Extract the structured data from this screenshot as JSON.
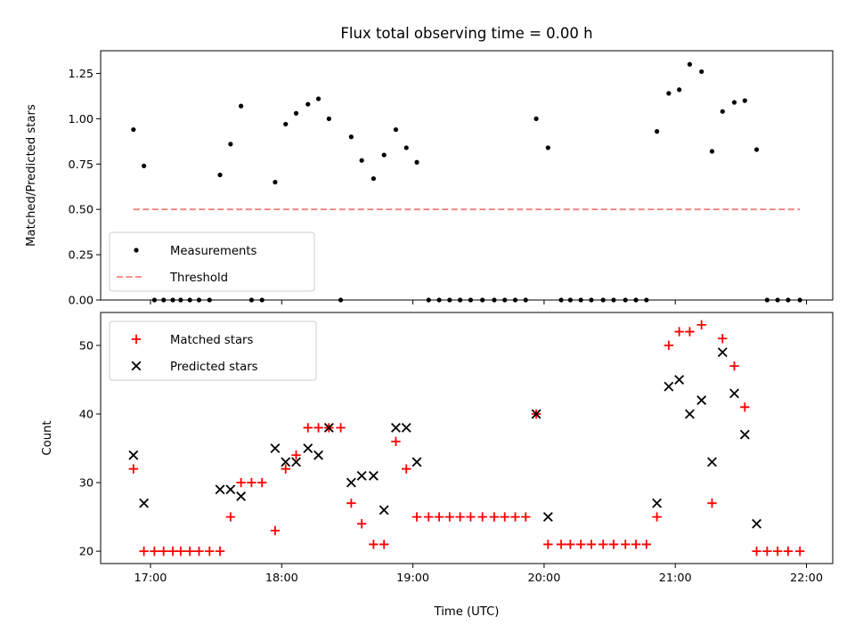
{
  "figure": {
    "title": "Flux total observing time = 0.00 h"
  },
  "chart_data": [
    {
      "type": "scatter",
      "panel": "top",
      "ylabel": "Matched/Predicted stars",
      "xlabel": "",
      "xlim": [
        16.62,
        22.2
      ],
      "ylim": [
        0,
        1.375
      ],
      "yticks": [
        0.0,
        0.25,
        0.5,
        0.75,
        1.0,
        1.25
      ],
      "ytick_labels": [
        "0.00",
        "0.25",
        "0.50",
        "0.75",
        "1.00",
        "1.25"
      ],
      "xticks": [
        17,
        18,
        19,
        20,
        21,
        22
      ],
      "grid": false,
      "legend": "lower-left",
      "series": [
        {
          "name": "Measurements",
          "kind": "points",
          "color": "#000000",
          "x": [
            16.87,
            16.95,
            17.03,
            17.1,
            17.17,
            17.23,
            17.3,
            17.37,
            17.45,
            17.53,
            17.61,
            17.69,
            17.77,
            17.85,
            17.95,
            18.03,
            18.11,
            18.2,
            18.28,
            18.36,
            18.45,
            18.53,
            18.61,
            18.7,
            18.78,
            18.87,
            18.95,
            19.03,
            19.12,
            19.2,
            19.28,
            19.36,
            19.44,
            19.53,
            19.62,
            19.7,
            19.78,
            19.86,
            19.94,
            20.03,
            20.13,
            20.2,
            20.28,
            20.36,
            20.45,
            20.53,
            20.62,
            20.7,
            20.78,
            20.86,
            20.95,
            21.03,
            21.11,
            21.2,
            21.28,
            21.36,
            21.45,
            21.53,
            21.62,
            21.7,
            21.78,
            21.86,
            21.95
          ],
          "y": [
            0.94,
            0.74,
            0,
            0,
            0,
            0,
            0,
            0,
            0,
            0.69,
            0.86,
            1.07,
            0,
            0,
            0.65,
            0.97,
            1.03,
            1.08,
            1.11,
            1.0,
            0,
            0.9,
            0.77,
            0.67,
            0.8,
            0.94,
            0.84,
            0.76,
            0,
            0,
            0,
            0,
            0,
            0,
            0,
            0,
            0,
            0,
            1.0,
            0.84,
            0,
            0,
            0,
            0,
            0,
            0,
            0,
            0,
            0,
            0.93,
            1.14,
            1.16,
            1.3,
            1.26,
            0.82,
            1.04,
            1.09,
            1.1,
            0.83,
            0,
            0,
            0,
            0
          ]
        },
        {
          "name": "Threshold",
          "kind": "dashed-line",
          "color": "#f08080",
          "x": [
            16.87,
            21.95
          ],
          "y": [
            0.5,
            0.5
          ]
        }
      ]
    },
    {
      "type": "scatter",
      "panel": "bottom",
      "xlabel": "Time (UTC)",
      "ylabel": "Count",
      "xlim": [
        16.62,
        22.2
      ],
      "ylim": [
        18.2,
        54.8
      ],
      "yticks": [
        20,
        30,
        40,
        50
      ],
      "ytick_labels": [
        "20",
        "30",
        "40",
        "50"
      ],
      "xticks": [
        17,
        18,
        19,
        20,
        21,
        22
      ],
      "xtick_labels": [
        "17:00",
        "18:00",
        "19:00",
        "20:00",
        "21:00",
        "22:00"
      ],
      "grid": false,
      "legend": "upper-left",
      "series": [
        {
          "name": "Matched stars",
          "marker": "+",
          "color": "#ff0000",
          "x": [
            16.87,
            16.95,
            17.03,
            17.1,
            17.17,
            17.23,
            17.3,
            17.37,
            17.45,
            17.53,
            17.61,
            17.69,
            17.77,
            17.85,
            17.95,
            18.03,
            18.11,
            18.2,
            18.28,
            18.36,
            18.45,
            18.53,
            18.61,
            18.7,
            18.78,
            18.87,
            18.95,
            19.03,
            19.12,
            19.2,
            19.28,
            19.36,
            19.44,
            19.53,
            19.62,
            19.7,
            19.78,
            19.86,
            19.94,
            20.03,
            20.13,
            20.2,
            20.28,
            20.36,
            20.45,
            20.53,
            20.62,
            20.7,
            20.78,
            20.86,
            20.95,
            21.03,
            21.11,
            21.2,
            21.28,
            21.36,
            21.45,
            21.53,
            21.62,
            21.7,
            21.78,
            21.86,
            21.95
          ],
          "y": [
            32,
            20,
            20,
            20,
            20,
            20,
            20,
            20,
            20,
            20,
            25,
            30,
            30,
            30,
            23,
            32,
            34,
            38,
            38,
            38,
            38,
            27,
            24,
            21,
            21,
            36,
            32,
            25,
            25,
            25,
            25,
            25,
            25,
            25,
            25,
            25,
            25,
            25,
            40,
            21,
            21,
            21,
            21,
            21,
            21,
            21,
            21,
            21,
            21,
            25,
            50,
            52,
            52,
            53,
            27,
            51,
            47,
            41,
            20,
            20,
            20,
            20,
            20
          ]
        },
        {
          "name": "Predicted stars",
          "marker": "x",
          "color": "#000000",
          "x": [
            16.87,
            16.95,
            17.53,
            17.61,
            17.69,
            17.95,
            18.03,
            18.11,
            18.2,
            18.28,
            18.36,
            18.53,
            18.61,
            18.7,
            18.78,
            18.87,
            18.95,
            19.03,
            19.94,
            20.03,
            20.86,
            20.95,
            21.03,
            21.11,
            21.2,
            21.28,
            21.36,
            21.45,
            21.53,
            21.62
          ],
          "y": [
            34,
            27,
            29,
            29,
            28,
            35,
            33,
            33,
            35,
            34,
            38,
            30,
            31,
            31,
            26,
            38,
            38,
            33,
            40,
            25,
            27,
            44,
            45,
            40,
            42,
            33,
            49,
            43,
            37,
            24
          ]
        }
      ]
    }
  ]
}
